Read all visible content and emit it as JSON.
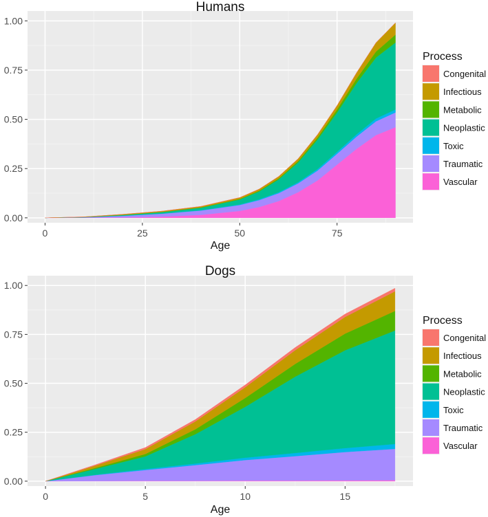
{
  "chart_data": [
    {
      "type": "area",
      "stacked": true,
      "title": "Humans",
      "xlabel": "Age",
      "ylabel": "",
      "xlim": [
        -4.5,
        94.5
      ],
      "ylim": [
        -0.025,
        1.05
      ],
      "xticks": [
        0,
        25,
        50,
        75
      ],
      "yticks": [
        0,
        0.25,
        0.5,
        0.75,
        1.0
      ],
      "ytick_labels": [
        "0.00",
        "0.25",
        "0.50",
        "0.75",
        "1.00"
      ],
      "x": [
        0,
        10,
        20,
        30,
        40,
        50,
        55,
        60,
        65,
        70,
        75,
        80,
        85,
        90
      ],
      "series": [
        {
          "name": "Congenital",
          "values": [
            0,
            0,
            0,
            0,
            0,
            0,
            0,
            0,
            0,
            0,
            0,
            0,
            0,
            0
          ]
        },
        {
          "name": "Infectious",
          "values": [
            0,
            0.001,
            0.003,
            0.004,
            0.005,
            0.007,
            0.008,
            0.01,
            0.012,
            0.015,
            0.02,
            0.03,
            0.045,
            0.06
          ]
        },
        {
          "name": "Metabolic",
          "values": [
            0,
            0.0005,
            0.001,
            0.001,
            0.002,
            0.003,
            0.004,
            0.005,
            0.007,
            0.01,
            0.015,
            0.022,
            0.03,
            0.04
          ]
        },
        {
          "name": "Neoplastic",
          "values": [
            0,
            0.0005,
            0.003,
            0.007,
            0.012,
            0.025,
            0.04,
            0.065,
            0.1,
            0.15,
            0.2,
            0.26,
            0.31,
            0.34
          ]
        },
        {
          "name": "Toxic",
          "values": [
            0,
            0.0005,
            0.001,
            0.001,
            0.002,
            0.003,
            0.004,
            0.005,
            0.006,
            0.008,
            0.01,
            0.012,
            0.014,
            0.015
          ]
        },
        {
          "name": "Traumatic",
          "values": [
            0,
            0.002,
            0.008,
            0.015,
            0.022,
            0.03,
            0.035,
            0.04,
            0.045,
            0.05,
            0.055,
            0.062,
            0.07,
            0.075
          ]
        },
        {
          "name": "Vascular",
          "values": [
            0,
            0.0005,
            0.002,
            0.006,
            0.015,
            0.035,
            0.055,
            0.085,
            0.13,
            0.19,
            0.27,
            0.35,
            0.42,
            0.46
          ]
        }
      ],
      "legend": {
        "title": "Process",
        "position": "right"
      }
    },
    {
      "type": "area",
      "stacked": true,
      "title": "Dogs",
      "xlabel": "Age",
      "ylabel": "",
      "xlim": [
        -0.9,
        18.4
      ],
      "ylim": [
        -0.025,
        1.05
      ],
      "xticks": [
        0,
        5,
        10,
        15
      ],
      "yticks": [
        0,
        0.25,
        0.5,
        0.75,
        1.0
      ],
      "ytick_labels": [
        "0.00",
        "0.25",
        "0.50",
        "0.75",
        "1.00"
      ],
      "x": [
        0,
        2.5,
        5,
        7.5,
        10,
        12.5,
        15,
        17.5
      ],
      "series": [
        {
          "name": "Congenital",
          "values": [
            0,
            0.004,
            0.008,
            0.01,
            0.012,
            0.014,
            0.015,
            0.016
          ]
        },
        {
          "name": "Infectious",
          "values": [
            0,
            0.012,
            0.025,
            0.04,
            0.055,
            0.07,
            0.085,
            0.1
          ]
        },
        {
          "name": "Metabolic",
          "values": [
            0,
            0.005,
            0.012,
            0.025,
            0.045,
            0.065,
            0.085,
            0.1
          ]
        },
        {
          "name": "Neoplastic",
          "values": [
            0,
            0.03,
            0.065,
            0.15,
            0.26,
            0.39,
            0.5,
            0.58
          ]
        },
        {
          "name": "Toxic",
          "values": [
            0,
            0.002,
            0.005,
            0.008,
            0.012,
            0.016,
            0.02,
            0.025
          ]
        },
        {
          "name": "Traumatic",
          "values": [
            0,
            0.03,
            0.055,
            0.08,
            0.105,
            0.125,
            0.145,
            0.16
          ]
        },
        {
          "name": "Vascular",
          "values": [
            0,
            0.001,
            0.002,
            0.002,
            0.003,
            0.003,
            0.004,
            0.005
          ]
        }
      ],
      "legend": {
        "title": "Process",
        "position": "right"
      }
    }
  ],
  "colors": {
    "Congenital": "#F8766D",
    "Infectious": "#C49A00",
    "Metabolic": "#53B400",
    "Neoplastic": "#00C094",
    "Toxic": "#00B6EB",
    "Traumatic": "#A58AFF",
    "Vascular": "#FB61D7",
    "panel": "#EBEBEB",
    "grid": "#FFFFFF"
  }
}
